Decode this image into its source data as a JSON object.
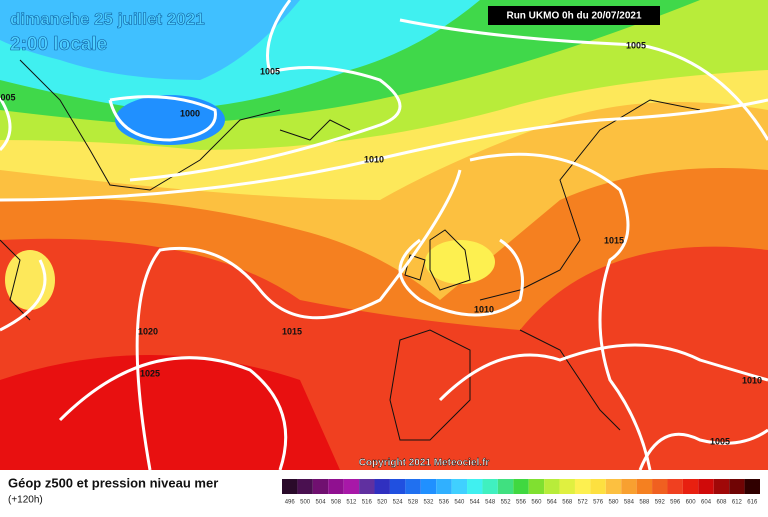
{
  "header": {
    "date": "dimanche 25 juillet 2021",
    "time": "2:00 locale",
    "run": "Run UKMO 0h du 20/07/2021"
  },
  "isobar_labels": [
    "1005",
    "1005",
    "005",
    "1000",
    "1010",
    "1015",
    "1010",
    "1020",
    "1015",
    "1025",
    "1010",
    "1005"
  ],
  "copyright": "Copyright 2021 Meteociel.fr",
  "legend": {
    "title": "Géop z500 et pression niveau mer",
    "lead": "(+120h)",
    "scale": [
      {
        "label": "496",
        "color": "#2a0a2a"
      },
      {
        "label": "500",
        "color": "#4a1050"
      },
      {
        "label": "504",
        "color": "#701070"
      },
      {
        "label": "508",
        "color": "#901090"
      },
      {
        "label": "512",
        "color": "#a818a8"
      },
      {
        "label": "516",
        "color": "#6030a0"
      },
      {
        "label": "520",
        "color": "#3030c0"
      },
      {
        "label": "524",
        "color": "#2050e0"
      },
      {
        "label": "528",
        "color": "#2070f0"
      },
      {
        "label": "532",
        "color": "#2090ff"
      },
      {
        "label": "536",
        "color": "#30b0ff"
      },
      {
        "label": "540",
        "color": "#40d0ff"
      },
      {
        "label": "544",
        "color": "#40f0f0"
      },
      {
        "label": "548",
        "color": "#40f0c0"
      },
      {
        "label": "552",
        "color": "#40e080"
      },
      {
        "label": "556",
        "color": "#40d840"
      },
      {
        "label": "560",
        "color": "#80e030"
      },
      {
        "label": "564",
        "color": "#b8ec3a"
      },
      {
        "label": "568",
        "color": "#e0f040"
      },
      {
        "label": "572",
        "color": "#fdf050"
      },
      {
        "label": "576",
        "color": "#fde040"
      },
      {
        "label": "580",
        "color": "#fcc040"
      },
      {
        "label": "584",
        "color": "#f8a030"
      },
      {
        "label": "588",
        "color": "#f58020"
      },
      {
        "label": "592",
        "color": "#f06020"
      },
      {
        "label": "596",
        "color": "#f04020"
      },
      {
        "label": "600",
        "color": "#e82010"
      },
      {
        "label": "604",
        "color": "#d00a0a"
      },
      {
        "label": "608",
        "color": "#a00808"
      },
      {
        "label": "612",
        "color": "#700404"
      },
      {
        "label": "616",
        "color": "#300000"
      }
    ]
  }
}
